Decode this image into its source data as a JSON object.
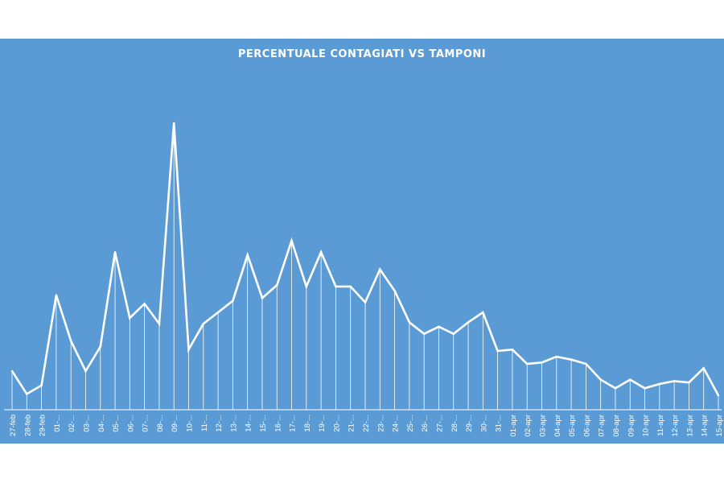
{
  "colors": {
    "background": "#5b9bd5",
    "line": "#ffffff",
    "drop_lines": "#ffffff",
    "page": "#ffffff"
  },
  "chart_data": {
    "type": "line",
    "title": "PERCENTUALE CONTAGIATI VS TAMPONI",
    "xlabel": "",
    "ylabel": "",
    "ylim": [
      0,
      100
    ],
    "y_axis_labels_visible": false,
    "grid": false,
    "drop_lines": true,
    "legend": "none",
    "categories": [
      "27-feb",
      "28-feb",
      "29-feb",
      "01-...",
      "02-...",
      "03-...",
      "04-...",
      "05-...",
      "06-...",
      "07-...",
      "08-...",
      "09-...",
      "10-...",
      "11-...",
      "12-...",
      "13-...",
      "14-...",
      "15-...",
      "16-...",
      "17-...",
      "18-...",
      "19-...",
      "20-...",
      "21-...",
      "22-...",
      "23-...",
      "24-...",
      "25-...",
      "26-...",
      "27-...",
      "28-...",
      "29-...",
      "30-...",
      "31-...",
      "01-apr",
      "02-apr",
      "03-apr",
      "04-apr",
      "05-apr",
      "06-apr",
      "07-apr",
      "08-apr",
      "09-apr",
      "10-apr",
      "11-apr",
      "12-apr",
      "13-apr",
      "14-apr",
      "15-apr"
    ],
    "values": [
      13.5,
      5.5,
      8.5,
      40,
      24,
      13.5,
      22,
      55,
      32,
      37,
      30,
      100,
      21,
      30,
      34,
      38,
      54,
      39,
      43.5,
      59,
      43,
      55,
      43,
      43,
      37.5,
      49,
      41.5,
      30.5,
      26.5,
      29,
      26.5,
      30.5,
      34,
      20.5,
      21,
      16,
      16.5,
      18.5,
      17.5,
      16,
      10.5,
      7.5,
      10.5,
      7.5,
      9,
      10,
      9.5,
      14.5,
      5
    ]
  }
}
